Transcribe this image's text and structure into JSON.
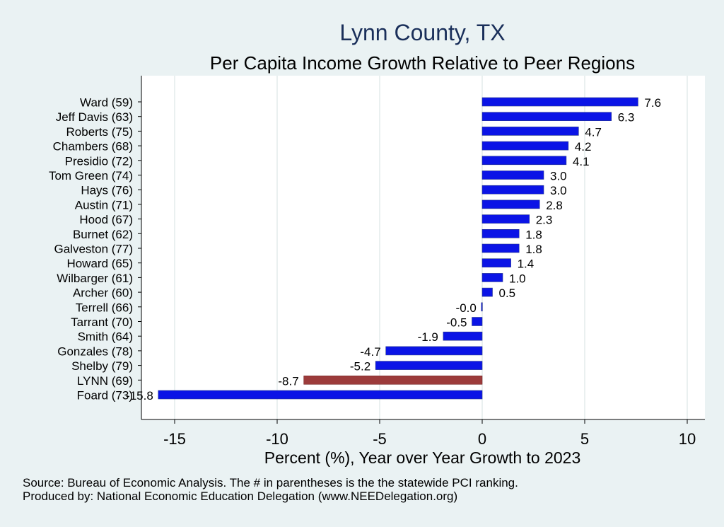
{
  "chart_data": {
    "type": "bar",
    "orientation": "horizontal",
    "title": "Lynn County, TX",
    "subtitle": "Per Capita Income Growth Relative to Peer Regions",
    "xlabel": "Percent (%), Year over Year Growth to 2023",
    "ylabel": "",
    "xlim": [
      -16.5,
      11
    ],
    "xticks": [
      -15,
      -10,
      -5,
      0,
      5,
      10
    ],
    "grid": true,
    "categories": [
      "Ward (59)",
      "Jeff Davis (63)",
      "Roberts (75)",
      "Chambers (68)",
      "Presidio (72)",
      "Tom Green (74)",
      "Hays (76)",
      "Austin (71)",
      "Hood (67)",
      "Burnet (62)",
      "Galveston (77)",
      "Howard (65)",
      "Wilbarger (61)",
      "Archer (60)",
      "Terrell (66)",
      "Tarrant (70)",
      "Smith (64)",
      "Gonzales (78)",
      "Shelby (79)",
      "LYNN (69)",
      "Foard (73)"
    ],
    "values": [
      7.6,
      6.3,
      4.7,
      4.2,
      4.1,
      3.0,
      3.0,
      2.8,
      2.3,
      1.8,
      1.8,
      1.4,
      1.0,
      0.5,
      -0.04,
      -0.5,
      -1.9,
      -4.7,
      -5.2,
      -8.7,
      -15.8
    ],
    "labels": [
      "7.6",
      "6.3",
      "4.7",
      "4.2",
      "4.1",
      "3.0",
      "3.0",
      "2.8",
      "2.3",
      "1.8",
      "1.8",
      "1.4",
      "1.0",
      "0.5",
      "-0.0",
      "-0.5",
      "-1.9",
      "-4.7",
      "-5.2",
      "-8.7",
      "-15.8"
    ],
    "highlight_category": "LYNN (69)",
    "colors": {
      "bar": "#0b14e6",
      "highlight": "#9c3b3b",
      "background": "#eaf2f3",
      "plot_bg": "#ffffff",
      "grid": "#e3ecec",
      "title": "#1a2f5a"
    }
  },
  "footer": {
    "source": "Source: Bureau of Economic Analysis. The # in parentheses is the the statewide PCI ranking.",
    "produced_by": "Produced by: National Economic Education Delegation (www.NEEDelegation.org)"
  }
}
